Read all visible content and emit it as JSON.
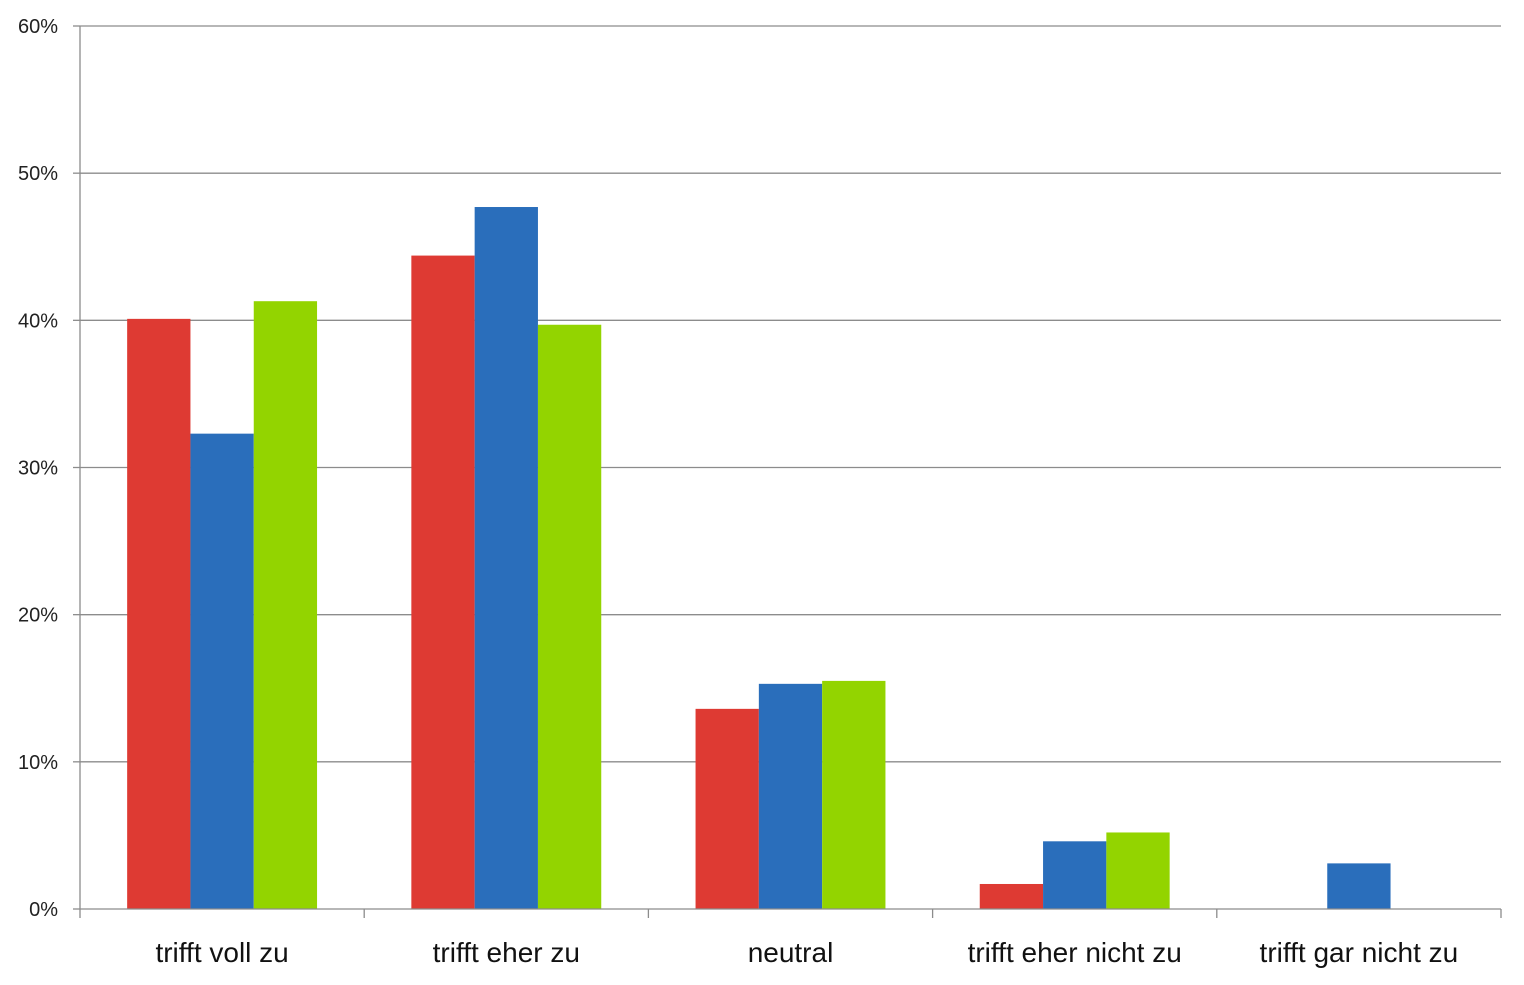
{
  "chart_data": {
    "type": "bar",
    "categories": [
      "trifft voll zu",
      "trifft eher zu",
      "neutral",
      "trifft eher nicht zu",
      "trifft gar nicht zu"
    ],
    "series": [
      {
        "values": [
          40.1,
          44.4,
          13.6,
          1.7,
          0
        ],
        "color": "#de3a33"
      },
      {
        "values": [
          32.3,
          47.7,
          15.3,
          4.6,
          3.1
        ],
        "color": "#2a6ebb"
      },
      {
        "values": [
          41.3,
          39.7,
          15.5,
          5.2,
          0
        ],
        "color": "#93d400"
      }
    ],
    "ylim": [
      0,
      60
    ],
    "yticks": [
      0,
      10,
      20,
      30,
      40,
      50,
      60
    ],
    "ytick_labels": [
      "0%",
      "10%",
      "20%",
      "30%",
      "40%",
      "50%",
      "60%"
    ],
    "grid": true,
    "legend": "none",
    "title": "",
    "xlabel": "",
    "ylabel": ""
  }
}
